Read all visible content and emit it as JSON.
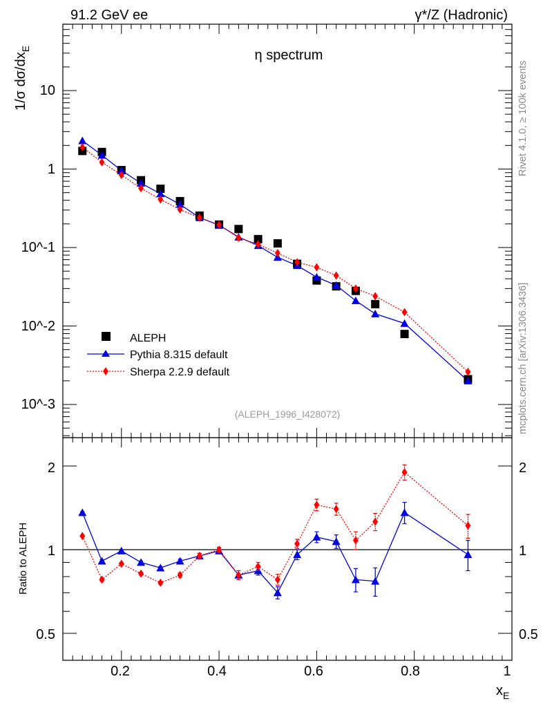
{
  "header": {
    "left": "91.2 GeV ee",
    "right": "γ*/Z (Hadronic)"
  },
  "side": {
    "rivet": "Rivet 4.1.0, ≥ 100k events",
    "mcplots": "mcplots.cern.ch [arXiv:1306.3436]"
  },
  "chart_data": [
    {
      "type": "scatter",
      "title": "η spectrum",
      "watermark": "(ALEPH_1996_I428072)",
      "ylabel_prefix": "1/σ  dσ/dx",
      "ylabel_sub": "E",
      "yscale": "log",
      "xlim": [
        0.08,
        1.0
      ],
      "ylim": [
        0.0003,
        80
      ],
      "ytick_labels": [
        "10",
        "1",
        "10^-1",
        "10^-2",
        "10^-3"
      ],
      "legend_position": "bottom-left",
      "series": [
        {
          "name": "ALEPH",
          "color": "#000000",
          "marker": "square",
          "x": [
            0.12,
            0.16,
            0.2,
            0.24,
            0.28,
            0.32,
            0.36,
            0.4,
            0.44,
            0.48,
            0.52,
            0.56,
            0.6,
            0.64,
            0.68,
            0.72,
            0.78,
            0.91
          ],
          "y": [
            1.7,
            1.65,
            0.97,
            0.72,
            0.56,
            0.39,
            0.255,
            0.196,
            0.172,
            0.128,
            0.113,
            0.062,
            0.038,
            0.032,
            0.028,
            0.019,
            0.0079,
            0.0021
          ]
        },
        {
          "name": "Pythia 8.315 default",
          "color": "#0000e0",
          "marker": "triangle",
          "line": "solid",
          "x": [
            0.12,
            0.16,
            0.2,
            0.24,
            0.28,
            0.32,
            0.36,
            0.4,
            0.44,
            0.48,
            0.52,
            0.56,
            0.6,
            0.64,
            0.68,
            0.72,
            0.78,
            0.91
          ],
          "y": [
            2.3,
            1.5,
            0.96,
            0.66,
            0.485,
            0.355,
            0.24,
            0.193,
            0.136,
            0.106,
            0.075,
            0.059,
            0.042,
            0.033,
            0.021,
            0.0143,
            0.0108,
            0.002
          ]
        },
        {
          "name": "Sherpa 2.2.9 default",
          "color": "#ff0000",
          "marker": "diamond",
          "line": "dotted",
          "x": [
            0.12,
            0.16,
            0.2,
            0.24,
            0.28,
            0.32,
            0.36,
            0.4,
            0.44,
            0.48,
            0.52,
            0.56,
            0.6,
            0.64,
            0.68,
            0.72,
            0.78,
            0.91
          ],
          "y": [
            1.9,
            1.22,
            0.84,
            0.57,
            0.41,
            0.305,
            0.24,
            0.195,
            0.133,
            0.11,
            0.085,
            0.065,
            0.056,
            0.044,
            0.03,
            0.024,
            0.015,
            0.0026
          ]
        }
      ]
    },
    {
      "type": "scatter",
      "ylabel": "Ratio to ALEPH",
      "xlabel_prefix": "x",
      "xlabel_sub": "E",
      "yscale": "log",
      "xlim": [
        0.08,
        1.0
      ],
      "ylim": [
        0.4,
        2.5
      ],
      "x_ticks": [
        0.2,
        0.4,
        0.6,
        0.8,
        1.0
      ],
      "x_tick_labels": [
        "0.2",
        "0.4",
        "0.6",
        "0.8",
        "1"
      ],
      "y_ticks": [
        0.5,
        1,
        2
      ],
      "y_tick_labels": [
        "0.5",
        "1",
        "2"
      ],
      "reference_line": 1,
      "series": [
        {
          "name": "Pythia 8.315 default",
          "color": "#0000e0",
          "marker": "triangle",
          "line": "solid",
          "x": [
            0.12,
            0.16,
            0.2,
            0.24,
            0.28,
            0.32,
            0.36,
            0.4,
            0.44,
            0.48,
            0.52,
            0.56,
            0.6,
            0.64,
            0.68,
            0.72,
            0.78,
            0.91
          ],
          "y": [
            1.36,
            0.91,
            0.99,
            0.9,
            0.86,
            0.91,
            0.95,
            0.99,
            0.81,
            0.84,
            0.7,
            0.96,
            1.11,
            1.07,
            0.78,
            0.77,
            1.36,
            0.96
          ],
          "err": [
            0.01,
            0.01,
            0.01,
            0.01,
            0.01,
            0.015,
            0.02,
            0.02,
            0.03,
            0.03,
            0.035,
            0.04,
            0.05,
            0.06,
            0.075,
            0.09,
            0.12,
            0.12
          ]
        },
        {
          "name": "Sherpa 2.2.9 default",
          "color": "#ff0000",
          "marker": "diamond",
          "line": "dotted",
          "x": [
            0.12,
            0.16,
            0.2,
            0.24,
            0.28,
            0.32,
            0.36,
            0.4,
            0.44,
            0.48,
            0.52,
            0.56,
            0.6,
            0.64,
            0.68,
            0.72,
            0.78,
            0.91
          ],
          "y": [
            1.12,
            0.78,
            0.89,
            0.82,
            0.76,
            0.81,
            0.95,
            1.0,
            0.81,
            0.87,
            0.78,
            1.05,
            1.45,
            1.4,
            1.08,
            1.26,
            1.9,
            1.22
          ],
          "err": [
            0.01,
            0.01,
            0.01,
            0.01,
            0.01,
            0.015,
            0.02,
            0.02,
            0.03,
            0.03,
            0.035,
            0.04,
            0.07,
            0.07,
            0.08,
            0.09,
            0.12,
            0.12
          ]
        }
      ]
    }
  ]
}
